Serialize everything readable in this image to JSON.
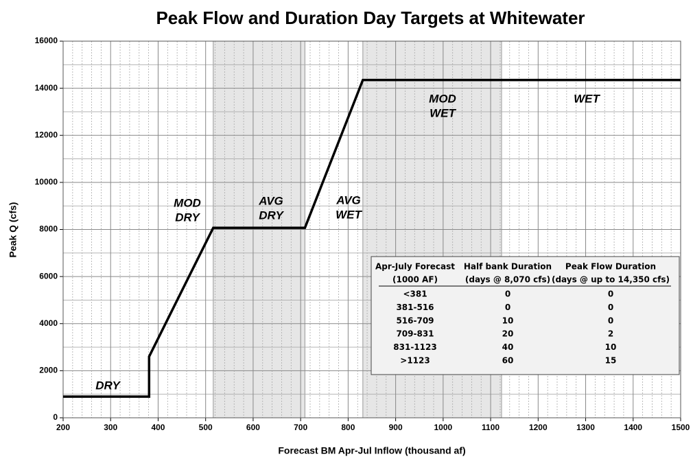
{
  "chart_data": {
    "type": "line",
    "title": "Peak Flow and Duration Day Targets at Whitewater",
    "x_label": "Forecast BM Apr-Jul Inflow (thousand af)",
    "y_label": "Peak Q (cfs)",
    "x": [
      200,
      381,
      381,
      516,
      709,
      831,
      1500
    ],
    "values": [
      900,
      900,
      2600,
      8070,
      8070,
      14350,
      14350
    ],
    "color": "#000000",
    "xlim": [
      200,
      1500
    ],
    "xticks": [
      200,
      300,
      400,
      500,
      600,
      700,
      800,
      900,
      1000,
      1100,
      1200,
      1300,
      1400,
      1500
    ],
    "ylim": [
      0,
      16000
    ],
    "yticks": [
      0,
      2000,
      4000,
      6000,
      8000,
      10000,
      12000,
      14000,
      16000
    ],
    "grid": true,
    "minor_grid": true,
    "shaded_ranges": [
      [
        516,
        709
      ],
      [
        831,
        1123
      ]
    ],
    "shade_color": "#e6e6e6",
    "annotations": [
      [
        "DRY"
      ],
      [
        "MOD",
        "DRY"
      ],
      [
        "AVG",
        "DRY"
      ],
      [
        "AVG",
        "WET"
      ],
      [
        "MOD",
        "WET"
      ],
      [
        "WET"
      ]
    ],
    "table": {
      "header": [
        [
          "Apr-July Forecast",
          "Half bank Duration",
          "Peak Flow  Duration"
        ],
        [
          "(1000 AF)",
          "(days @ 8,070 cfs)",
          "(days @ up to 14,350 cfs)"
        ]
      ],
      "rows": [
        [
          "<381",
          0,
          0
        ],
        [
          "381-516",
          0,
          0
        ],
        [
          "516-709",
          10,
          0
        ],
        [
          "709-831",
          20,
          2
        ],
        [
          "831-1123",
          40,
          10
        ],
        [
          ">1123",
          60,
          15
        ]
      ]
    }
  }
}
